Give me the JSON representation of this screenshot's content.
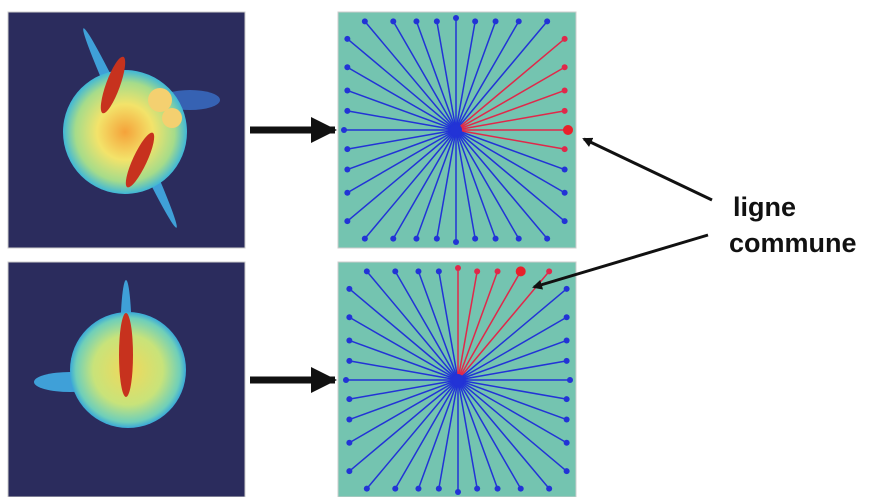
{
  "labels": {
    "line1": "ligne",
    "line2": "commune"
  }
}
